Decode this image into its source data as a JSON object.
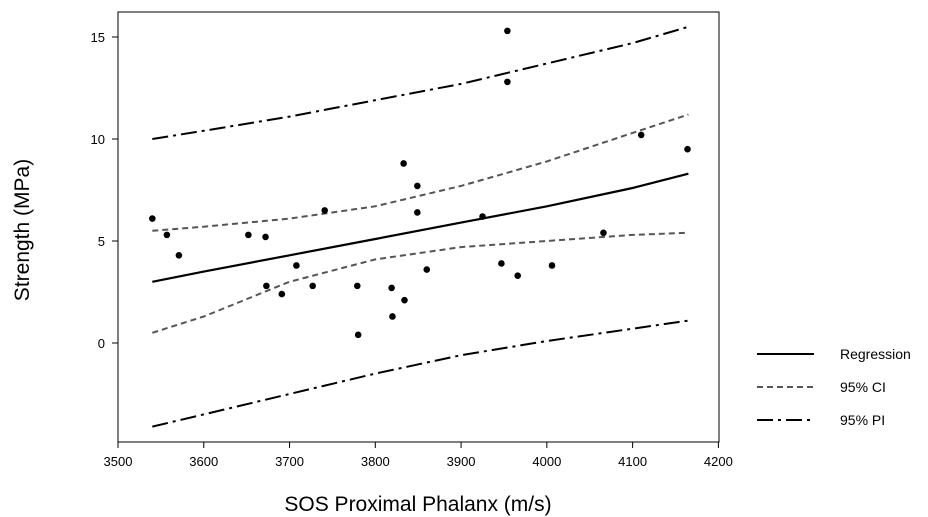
{
  "chart_data": {
    "type": "scatter",
    "xlabel": "SOS Proximal Phalanx (m/s)",
    "ylabel": "Strength (MPa)",
    "xlim": [
      3500,
      4200
    ],
    "ylim": [
      -4.5,
      16.2
    ],
    "xticks": [
      3500,
      3600,
      3700,
      3800,
      3900,
      4000,
      4100,
      4200
    ],
    "yticks": [
      0,
      5,
      10,
      15
    ],
    "grid": false,
    "legend_position": "right",
    "points": [
      {
        "x": 3540,
        "y": 6.1
      },
      {
        "x": 3557,
        "y": 5.3
      },
      {
        "x": 3571,
        "y": 4.3
      },
      {
        "x": 3652,
        "y": 5.3
      },
      {
        "x": 3672,
        "y": 5.2
      },
      {
        "x": 3673,
        "y": 2.8
      },
      {
        "x": 3691,
        "y": 2.4
      },
      {
        "x": 3708,
        "y": 3.8
      },
      {
        "x": 3727,
        "y": 2.8
      },
      {
        "x": 3741,
        "y": 6.5
      },
      {
        "x": 3779,
        "y": 2.8
      },
      {
        "x": 3780,
        "y": 0.4
      },
      {
        "x": 3819,
        "y": 2.7
      },
      {
        "x": 3820,
        "y": 1.3
      },
      {
        "x": 3833,
        "y": 8.8
      },
      {
        "x": 3834,
        "y": 2.1
      },
      {
        "x": 3849,
        "y": 7.7
      },
      {
        "x": 3849,
        "y": 6.4
      },
      {
        "x": 3860,
        "y": 3.6
      },
      {
        "x": 3925,
        "y": 6.2
      },
      {
        "x": 3947,
        "y": 3.9
      },
      {
        "x": 3954,
        "y": 15.3
      },
      {
        "x": 3954,
        "y": 12.8
      },
      {
        "x": 3966,
        "y": 3.3
      },
      {
        "x": 4006,
        "y": 3.8
      },
      {
        "x": 4066,
        "y": 5.4
      },
      {
        "x": 4110,
        "y": 10.2
      },
      {
        "x": 4164,
        "y": 9.5
      }
    ],
    "series": [
      {
        "name": "Regression",
        "style": "solid",
        "x": [
          3540,
          3600,
          3700,
          3800,
          3900,
          4000,
          4100,
          4165
        ],
        "y": [
          3.0,
          3.5,
          4.3,
          5.1,
          5.9,
          6.7,
          7.6,
          8.3
        ]
      },
      {
        "name": "95% CI",
        "style": "dashed",
        "band": "upper",
        "x": [
          3540,
          3600,
          3700,
          3800,
          3850,
          3900,
          3950,
          4000,
          4050,
          4100,
          4165
        ],
        "y": [
          5.5,
          5.7,
          6.1,
          6.7,
          7.2,
          7.7,
          8.3,
          8.9,
          9.6,
          10.3,
          11.2
        ]
      },
      {
        "name": "95% CI",
        "style": "dashed",
        "band": "lower",
        "x": [
          3540,
          3600,
          3700,
          3800,
          3900,
          4000,
          4100,
          4165
        ],
        "y": [
          0.5,
          1.3,
          3.0,
          4.1,
          4.7,
          5.0,
          5.3,
          5.4
        ]
      },
      {
        "name": "95% PI",
        "style": "dashdot",
        "band": "upper",
        "x": [
          3540,
          3600,
          3700,
          3800,
          3900,
          4000,
          4100,
          4165
        ],
        "y": [
          10.0,
          10.4,
          11.1,
          11.9,
          12.7,
          13.7,
          14.7,
          15.5
        ]
      },
      {
        "name": "95% PI",
        "style": "dashdot",
        "band": "lower",
        "x": [
          3540,
          3600,
          3700,
          3800,
          3900,
          4000,
          4100,
          4165
        ],
        "y": [
          -4.1,
          -3.5,
          -2.5,
          -1.5,
          -0.6,
          0.1,
          0.7,
          1.1
        ]
      }
    ],
    "legend": [
      {
        "label": "Regression",
        "style": "solid"
      },
      {
        "label": "95% CI",
        "style": "dashed"
      },
      {
        "label": "95% PI",
        "style": "dashdot"
      }
    ]
  }
}
